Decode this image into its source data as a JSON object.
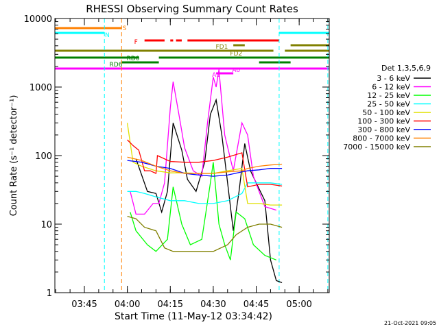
{
  "chart_data": {
    "type": "line",
    "title": "RHESSI Observing Summary Count Rates",
    "xlabel": "Start Time (11-May-12 03:34:42)",
    "ylabel": "Count Rate (s⁻¹ detector⁻¹)",
    "xlim": [
      "03:34:42",
      "05:10:30"
    ],
    "ylim": [
      1,
      10000
    ],
    "y_scale": "log",
    "x_ticks": [
      "03:45",
      "04:00",
      "04:15",
      "04:30",
      "04:45",
      "05:00"
    ],
    "y_ticks": [
      "1",
      "10",
      "100",
      "1000",
      "10000"
    ],
    "footer": "21-Oct-2021 09:05",
    "legend_title": "Det 1,3,5,6,9",
    "legend_position": "right",
    "series": [
      {
        "name": "3 - 6 keV",
        "color": "#000000",
        "points": [
          [
            "04:03",
            90
          ],
          [
            "04:07",
            30
          ],
          [
            "04:10",
            28
          ],
          [
            "04:12",
            15
          ],
          [
            "04:14",
            30
          ],
          [
            "04:16",
            300
          ],
          [
            "04:19",
            120
          ],
          [
            "04:21",
            45
          ],
          [
            "04:24",
            30
          ],
          [
            "04:27",
            80
          ],
          [
            "04:29",
            400
          ],
          [
            "04:31",
            650
          ],
          [
            "04:33",
            200
          ],
          [
            "04:35",
            40
          ],
          [
            "04:37",
            8
          ],
          [
            "04:39",
            30
          ],
          [
            "04:41",
            150
          ],
          [
            "04:43",
            60
          ],
          [
            "04:45",
            40
          ],
          [
            "04:48",
            22
          ],
          [
            "04:50",
            3
          ],
          [
            "04:52",
            1.5
          ],
          [
            "04:54",
            1.4
          ]
        ]
      },
      {
        "name": "6 - 12 keV",
        "color": "#ff00ff",
        "points": [
          [
            "04:01",
            30
          ],
          [
            "04:03",
            14
          ],
          [
            "04:06",
            14
          ],
          [
            "04:09",
            20
          ],
          [
            "04:11",
            20
          ],
          [
            "04:13",
            40
          ],
          [
            "04:15",
            500
          ],
          [
            "04:16",
            1200
          ],
          [
            "04:18",
            400
          ],
          [
            "04:20",
            130
          ],
          [
            "04:23",
            60
          ],
          [
            "04:26",
            50
          ],
          [
            "04:28",
            300
          ],
          [
            "04:30",
            1400
          ],
          [
            "04:31",
            1000
          ],
          [
            "04:32",
            1800
          ],
          [
            "04:34",
            200
          ],
          [
            "04:37",
            60
          ],
          [
            "04:40",
            300
          ],
          [
            "04:42",
            200
          ],
          [
            "04:44",
            50
          ],
          [
            "04:46",
            30
          ],
          [
            "04:48",
            18
          ],
          [
            "04:50",
            17
          ],
          [
            "04:52",
            16
          ]
        ]
      },
      {
        "name": "12 - 25 keV",
        "color": "#00ff00",
        "points": [
          [
            "04:01",
            15
          ],
          [
            "04:03",
            8
          ],
          [
            "04:07",
            5
          ],
          [
            "04:10",
            4
          ],
          [
            "04:14",
            6
          ],
          [
            "04:16",
            35
          ],
          [
            "04:19",
            10
          ],
          [
            "04:22",
            5
          ],
          [
            "04:26",
            6
          ],
          [
            "04:29",
            40
          ],
          [
            "04:30",
            80
          ],
          [
            "04:32",
            10
          ],
          [
            "04:34",
            5
          ],
          [
            "04:36",
            3
          ],
          [
            "04:38",
            15
          ],
          [
            "04:41",
            12
          ],
          [
            "04:44",
            5
          ],
          [
            "04:48",
            3.5
          ],
          [
            "04:52",
            3
          ]
        ]
      },
      {
        "name": "25 - 50 keV",
        "color": "#00ffff",
        "points": [
          [
            "04:00",
            30
          ],
          [
            "04:03",
            30
          ],
          [
            "04:06",
            28
          ],
          [
            "04:10",
            25
          ],
          [
            "04:15",
            22
          ],
          [
            "04:20",
            22
          ],
          [
            "04:25",
            20
          ],
          [
            "04:30",
            20
          ],
          [
            "04:35",
            22
          ],
          [
            "04:40",
            28
          ],
          [
            "04:42",
            40
          ],
          [
            "04:46",
            40
          ],
          [
            "04:50",
            40
          ],
          [
            "04:54",
            38
          ]
        ]
      },
      {
        "name": "50 - 100 keV",
        "color": "#e0e000",
        "points": [
          [
            "04:00",
            300
          ],
          [
            "04:02",
            80
          ],
          [
            "04:05",
            70
          ],
          [
            "04:10",
            60
          ],
          [
            "04:15",
            56
          ],
          [
            "04:20",
            56
          ],
          [
            "04:25",
            55
          ],
          [
            "04:30",
            55
          ],
          [
            "04:35",
            60
          ],
          [
            "04:40",
            65
          ],
          [
            "04:42",
            20
          ],
          [
            "04:46",
            20
          ],
          [
            "04:50",
            19
          ],
          [
            "04:54",
            19
          ]
        ]
      },
      {
        "name": "100 - 300 keV",
        "color": "#ff0000",
        "points": [
          [
            "04:00",
            170
          ],
          [
            "04:02",
            140
          ],
          [
            "04:04",
            120
          ],
          [
            "04:06",
            60
          ],
          [
            "04:08",
            60
          ],
          [
            "04:10",
            55
          ],
          [
            "04:10.5",
            100
          ],
          [
            "04:15",
            82
          ],
          [
            "04:20",
            80
          ],
          [
            "04:25",
            80
          ],
          [
            "04:30",
            85
          ],
          [
            "04:35",
            95
          ],
          [
            "04:40",
            110
          ],
          [
            "04:42",
            35
          ],
          [
            "04:46",
            38
          ],
          [
            "04:50",
            38
          ],
          [
            "04:54",
            36
          ]
        ]
      },
      {
        "name": "300 - 800 keV",
        "color": "#0000ff",
        "points": [
          [
            "04:00",
            85
          ],
          [
            "04:05",
            80
          ],
          [
            "04:10",
            70
          ],
          [
            "04:15",
            65
          ],
          [
            "04:20",
            55
          ],
          [
            "04:25",
            52
          ],
          [
            "04:30",
            50
          ],
          [
            "04:35",
            52
          ],
          [
            "04:40",
            58
          ],
          [
            "04:42",
            60
          ],
          [
            "04:46",
            62
          ],
          [
            "04:50",
            65
          ],
          [
            "04:54",
            65
          ]
        ]
      },
      {
        "name": "800 - 7000 keV",
        "color": "#ff8000",
        "points": [
          [
            "04:00",
            95
          ],
          [
            "04:05",
            85
          ],
          [
            "04:10",
            70
          ],
          [
            "04:15",
            60
          ],
          [
            "04:20",
            55
          ],
          [
            "04:25",
            55
          ],
          [
            "04:30",
            55
          ],
          [
            "04:35",
            58
          ],
          [
            "04:40",
            60
          ],
          [
            "04:42",
            65
          ],
          [
            "04:46",
            70
          ],
          [
            "04:50",
            73
          ],
          [
            "04:54",
            75
          ]
        ]
      },
      {
        "name": "7000 - 15000 keV",
        "color": "#808000",
        "points": [
          [
            "04:00",
            13
          ],
          [
            "04:03",
            12
          ],
          [
            "04:06",
            9
          ],
          [
            "04:10",
            8
          ],
          [
            "04:13",
            4.5
          ],
          [
            "04:16",
            4
          ],
          [
            "04:20",
            4
          ],
          [
            "04:25",
            4
          ],
          [
            "04:30",
            4
          ],
          [
            "04:35",
            5
          ],
          [
            "04:38",
            7
          ],
          [
            "04:42",
            9
          ],
          [
            "04:46",
            10
          ],
          [
            "04:50",
            10
          ],
          [
            "04:54",
            9
          ]
        ]
      }
    ],
    "flag_bars": [
      {
        "label": "S",
        "color": "#ff8000",
        "segments": [
          [
            "03:34:42",
            "03:58"
          ]
        ]
      },
      {
        "label": "N",
        "color": "#00ffff",
        "segments": [
          [
            "03:34:42",
            "03:52"
          ],
          [
            "04:53",
            "05:10:30"
          ]
        ]
      },
      {
        "label": "F",
        "color": "#ff0000",
        "segments": [
          [
            "04:06",
            "04:13"
          ],
          [
            "04:15",
            "04:16"
          ],
          [
            "04:17",
            "04:19"
          ],
          [
            "04:21",
            "04:53"
          ]
        ]
      },
      {
        "label": "FD1",
        "color": "#808000",
        "segments": [
          [
            "04:37",
            "04:41"
          ],
          [
            "04:57",
            "05:10:30"
          ]
        ]
      },
      {
        "label": "FD2",
        "color": "#808000",
        "segments": [
          [
            "03:34:42",
            "04:51"
          ],
          [
            "04:55",
            "05:10:30"
          ]
        ]
      },
      {
        "label": "RD0",
        "color": "#008000",
        "segments": [
          [
            "03:34:42",
            "04:04"
          ],
          [
            "04:11",
            "05:10:30"
          ]
        ]
      },
      {
        "label": "RD6",
        "color": "#008000",
        "segments": [
          [
            "03:58",
            "04:11"
          ],
          [
            "04:46",
            "04:57"
          ]
        ]
      },
      {
        "label": "A1",
        "color": "#ff00ff",
        "segments": [
          [
            "04:31",
            "04:37"
          ]
        ]
      },
      {
        "label": "A0",
        "color": "#ff00ff",
        "segments": [
          [
            "03:34:42",
            "05:10:30"
          ]
        ]
      }
    ],
    "vlines": [
      {
        "time": "03:34:42",
        "color": "#00ffff"
      },
      {
        "time": "03:52",
        "color": "#00ffff"
      },
      {
        "time": "03:58",
        "color": "#ff8000"
      },
      {
        "time": "04:53",
        "color": "#00ffff"
      },
      {
        "time": "05:10",
        "color": "#00ffff"
      }
    ]
  }
}
